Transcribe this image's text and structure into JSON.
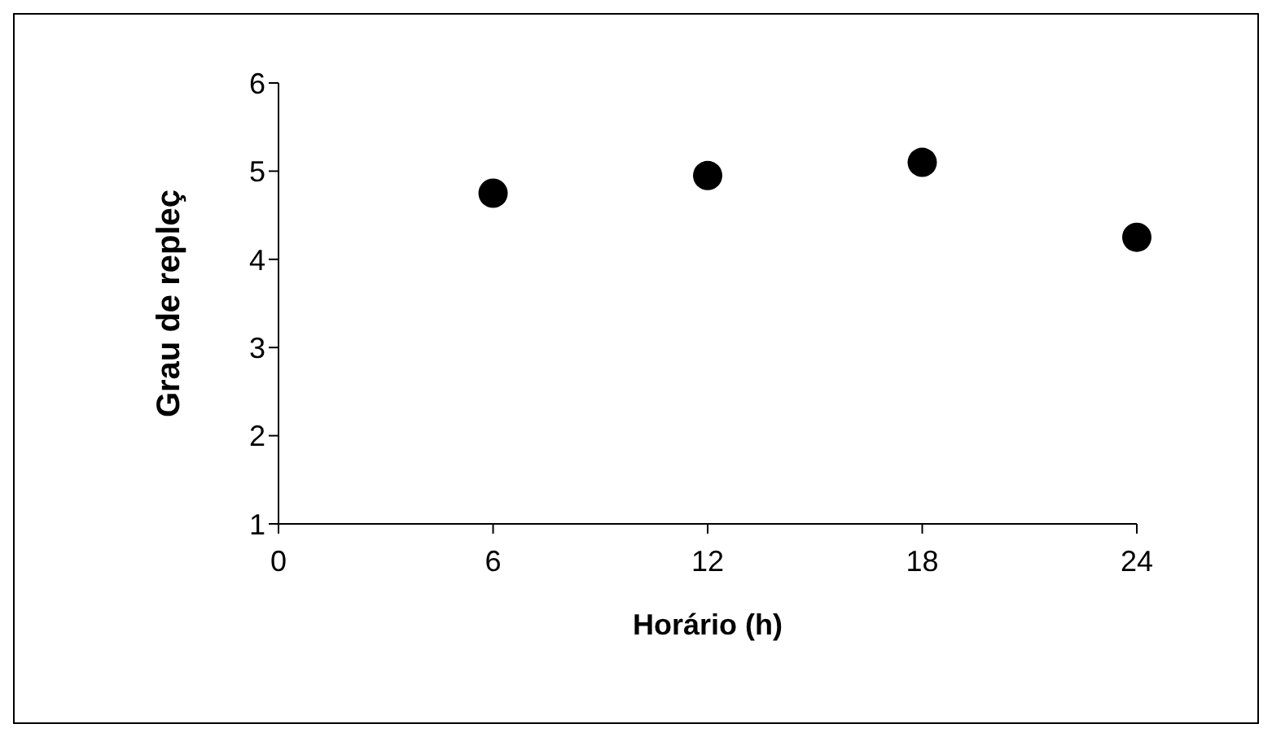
{
  "chart_data": {
    "type": "scatter",
    "xlabel": "Horário (h)",
    "ylabel": "Grau de repleç",
    "x": [
      6,
      12,
      18,
      24
    ],
    "series": [
      {
        "color": "#000000",
        "values": [
          4.75,
          4.95,
          5.1,
          4.25
        ]
      }
    ],
    "xlim": [
      0,
      24
    ],
    "xticks": [
      0,
      6,
      12,
      18,
      24
    ],
    "ylim": [
      1,
      6
    ],
    "yticks": [
      1,
      2,
      3,
      4,
      5,
      6
    ],
    "grid": false,
    "legend": false,
    "marker": "circle"
  }
}
